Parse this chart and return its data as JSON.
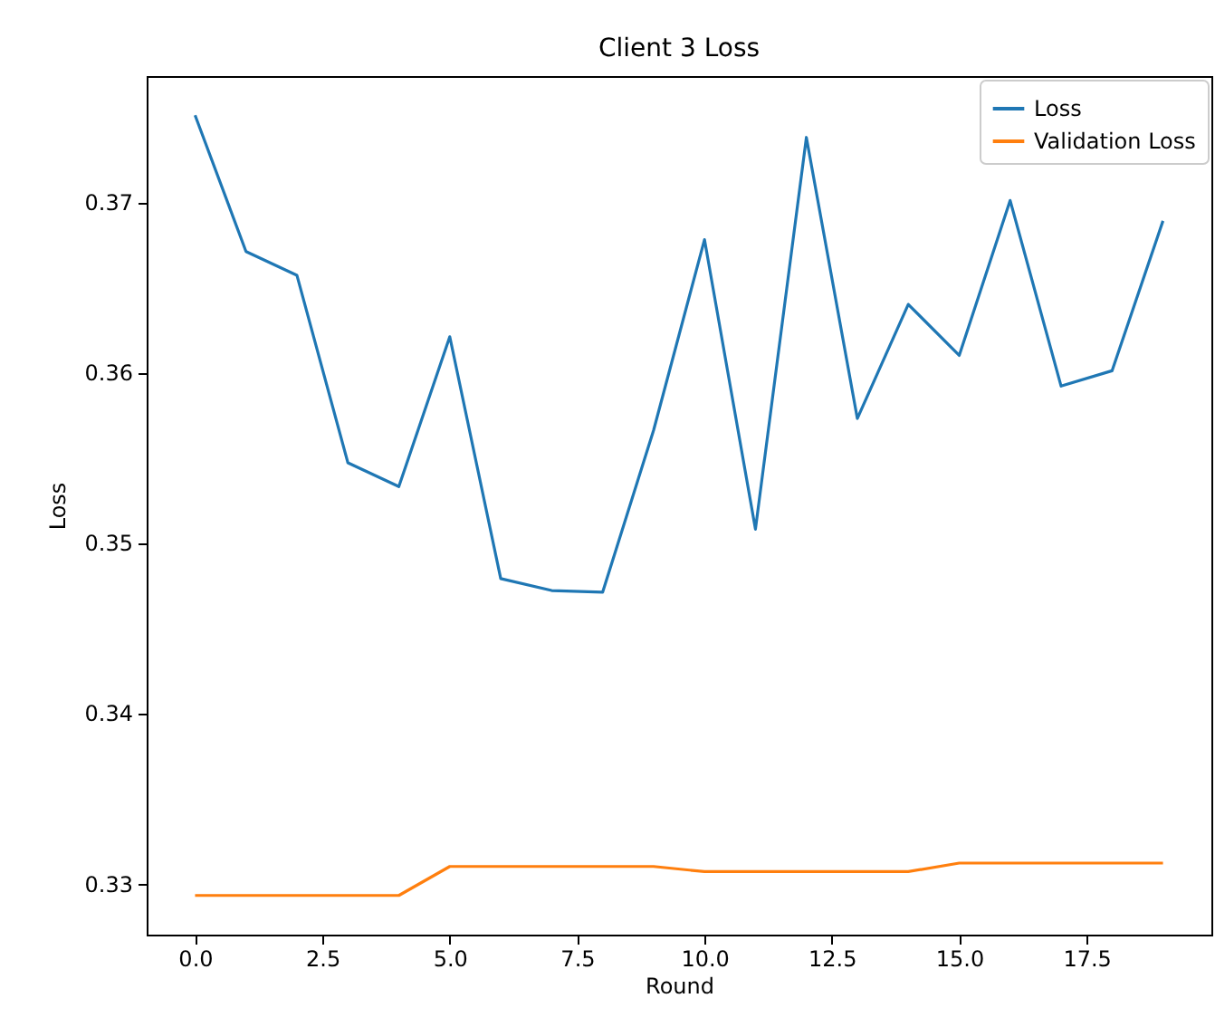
{
  "chart_data": {
    "type": "line",
    "title": "Client 3 Loss",
    "xlabel": "Round",
    "ylabel": "Loss",
    "x": [
      0,
      1,
      2,
      3,
      4,
      5,
      6,
      7,
      8,
      9,
      10,
      11,
      12,
      13,
      14,
      15,
      16,
      17,
      18,
      19
    ],
    "series": [
      {
        "name": "Loss",
        "color": "#1f77b4",
        "values": [
          0.3751,
          0.3671,
          0.3657,
          0.3547,
          0.3533,
          0.3621,
          0.3479,
          0.3472,
          0.3471,
          0.3566,
          0.3678,
          0.3508,
          0.3738,
          0.3573,
          0.364,
          0.361,
          0.3701,
          0.3592,
          0.3601,
          0.3689
        ]
      },
      {
        "name": "Validation Loss",
        "color": "#ff7f0e",
        "values": [
          0.3293,
          0.3293,
          0.3293,
          0.3293,
          0.3293,
          0.331,
          0.331,
          0.331,
          0.331,
          0.331,
          0.3307,
          0.3307,
          0.3307,
          0.3307,
          0.3307,
          0.3312,
          0.3312,
          0.3312,
          0.3312,
          0.3312
        ]
      }
    ],
    "xlim": [
      -0.95,
      19.95
    ],
    "ylim": [
      0.327,
      0.3774
    ],
    "xticks": [
      {
        "value": 0,
        "label": "0.0"
      },
      {
        "value": 2.5,
        "label": "2.5"
      },
      {
        "value": 5,
        "label": "5.0"
      },
      {
        "value": 7.5,
        "label": "7.5"
      },
      {
        "value": 10,
        "label": "10.0"
      },
      {
        "value": 12.5,
        "label": "12.5"
      },
      {
        "value": 15,
        "label": "15.0"
      },
      {
        "value": 17.5,
        "label": "17.5"
      }
    ],
    "yticks": [
      0.33,
      0.34,
      0.35,
      0.36,
      0.37
    ],
    "legend": "top right",
    "grid": false,
    "line_style": "solid",
    "marker": "none"
  }
}
